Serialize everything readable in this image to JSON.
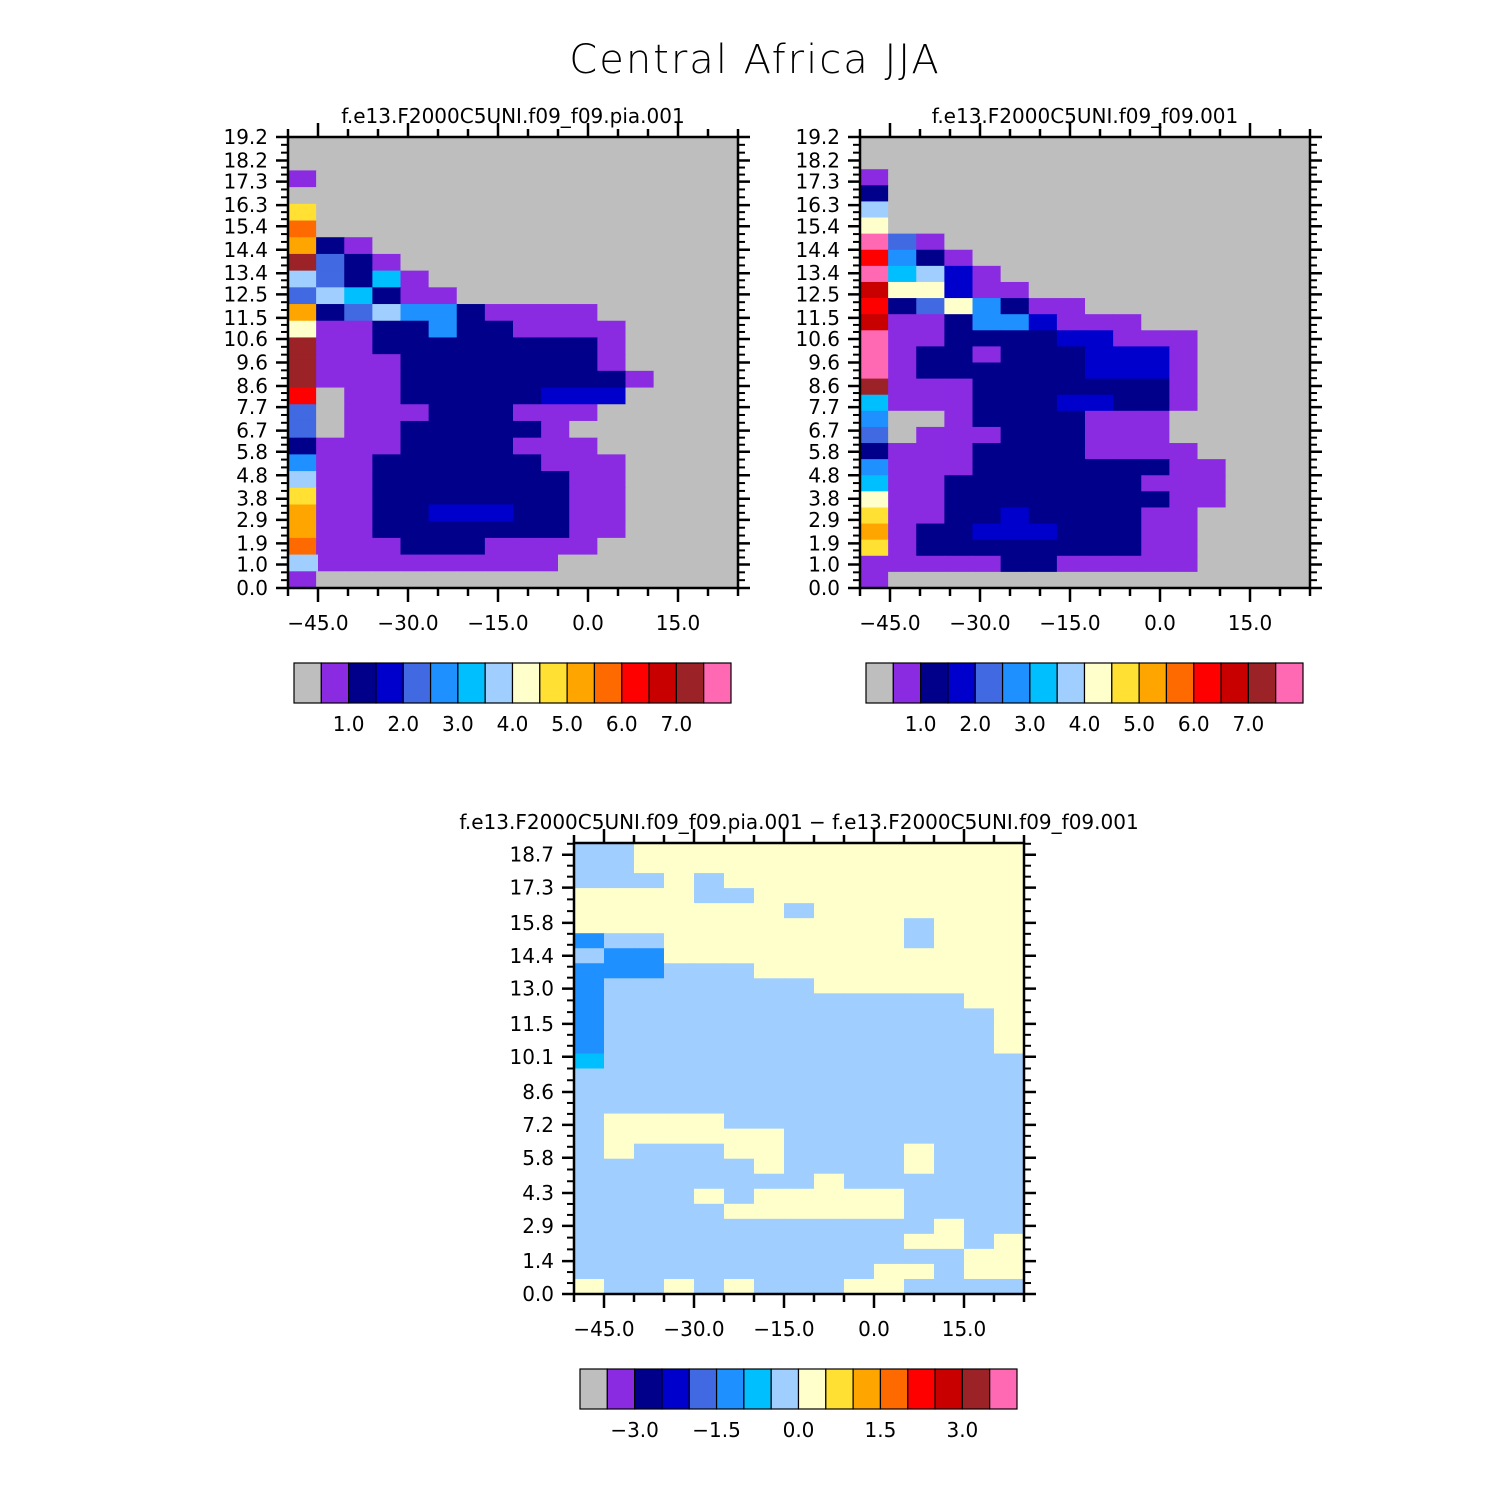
{
  "figure_title": "Central Africa JJA",
  "palettes": {
    "abs": [
      "#BEBEBE",
      "#8A2BE2",
      "#00008B",
      "#0000CD",
      "#4169E1",
      "#1E90FF",
      "#00BFFF",
      "#A0CFFF",
      "#FFFFCC",
      "#FFE033",
      "#FFA500",
      "#FF6A00",
      "#FF0000",
      "#C80000",
      "#9B2226",
      "#FF69B4"
    ],
    "diff": [
      "#BEBEBE",
      "#8A2BE2",
      "#00008B",
      "#0000CD",
      "#4169E1",
      "#1E90FF",
      "#00BFFF",
      "#A0CFFF",
      "#FFFFCC",
      "#FFE033",
      "#FFA500",
      "#FF6A00",
      "#FF0000",
      "#C80000",
      "#9B2226",
      "#FF69B4"
    ]
  },
  "chart_data": [
    {
      "type": "heatmap",
      "title": "f.e13.F2000C5UNI.f09_f09.pia.001",
      "x_ticks": [
        "−45.0",
        "−30.0",
        "−15.0",
        "0.0",
        "15.0"
      ],
      "y_ticks": [
        "0.0",
        "1.0",
        "1.9",
        "2.9",
        "3.8",
        "4.8",
        "5.8",
        "6.7",
        "7.7",
        "8.6",
        "9.6",
        "10.6",
        "11.5",
        "12.5",
        "13.4",
        "14.4",
        "15.4",
        "16.3",
        "17.3",
        "18.2",
        "19.2"
      ],
      "xlim": [
        -50,
        25
      ],
      "ylim": [
        0,
        19.2
      ],
      "colorbar_labels": [
        "1.0",
        "2.0",
        "3.0",
        "4.0",
        "5.0",
        "6.0",
        "7.0"
      ],
      "cell_grid": [
        "gggggggggggggggg",
        "gggggggggggggggg",
        "Pggggggggggggggg",
        "bggggggggggggggg",
        "Yggggggggggggggg",
        "ZggggggggggggggG",
        "OBPggggggggggggg",
        "NRBPgggggggggggg",
        "LRBDPggggggggggg",
        "RLDBPPgggggggggg",
        "OBRLSSBPPPPggggg",
        "WPPBBSBBPPPPgggg",
        "NPPBBBBBBBBPgggg",
        "NPPPBBBBBBBPgggg",
        "NPPPBBBBBBBBPggg",
        "FgPPBBBBBCCCgggg",
        "RgPPPBBBPPPggggg",
        "RgPPBBBBBPgggggg",
        "BPPPBBBBPPPggggg",
        "SPPBBBBBBPPPgggg",
        "LPPBBBBBBBPPgggg",
        "YPPBBBBBBBPPgggg",
        "OPPBBCCCBBPPgggg",
        "OPPBBBBBBBPPgggg",
        "ZPPPBBBPPPPggggg",
        "LPPPPPPPPgggggg",
        "Pggggggggggggggg"
      ],
      "cell_legend": {
        "g": 0,
        "P": 1,
        "B": 2,
        "C": 3,
        "R": 4,
        "S": 5,
        "D": 6,
        "L": 7,
        "W": 8,
        "Y": 9,
        "O": 10,
        "Z": 11,
        "F": 12,
        "M": 13,
        "N": 14,
        "K": 15
      }
    },
    {
      "type": "heatmap",
      "title": "f.e13.F2000C5UNI.f09_f09.001",
      "x_ticks": [
        "−45.0",
        "−30.0",
        "−15.0",
        "0.0",
        "15.0"
      ],
      "y_ticks": [
        "0.0",
        "1.0",
        "1.9",
        "2.9",
        "3.8",
        "4.8",
        "5.8",
        "6.7",
        "7.7",
        "8.6",
        "9.6",
        "10.6",
        "11.5",
        "12.5",
        "13.4",
        "14.4",
        "15.4",
        "16.3",
        "17.3",
        "18.2",
        "19.2"
      ],
      "xlim": [
        -50,
        25
      ],
      "ylim": [
        0,
        19.2
      ],
      "colorbar_labels": [
        "1.0",
        "2.0",
        "3.0",
        "4.0",
        "5.0",
        "6.0",
        "7.0"
      ],
      "cell_grid": [
        "gggggggggggggggg",
        "gggggggggggggggg",
        "Pggggggggggggggg",
        "Bggggggggggggggg",
        "Lggggggggggggggg",
        "Wggggggggggggggg",
        "KRPggggggggggggg",
        "FSBPgggggggggggg",
        "KDLCPggggggggggg",
        "MWWCPPgggggggggg",
        "FBRWSBPPgggggggg",
        "MPPBSSCPPPgggggg",
        "KPPBBBBCCPPPgggg",
        "KPBBPBBBCCCPgggg",
        "KPBBBBBBCCCPgggg",
        "NPPPBBBBBBBPgggg",
        "DPPPBBBCCBBPgggg",
        "SggPBBBBPPPggggg",
        "RgPPPBBBPPPggggg",
        "BPPPBBBBPPPPgggg",
        "SPPPBBBBBBBPPggg",
        "DPPBBBBBBBPPPggg",
        "WPPBBBBBBBBPPggg",
        "YPPBBCBBBBPPgggg",
        "OPBBCCCBBBPPgggg",
        "YPBBBBBBBBPPgggg",
        "PPPPPBBPPPPPgggg",
        "Pggggggggggggggg"
      ],
      "cell_legend": {
        "g": 0,
        "P": 1,
        "B": 2,
        "C": 3,
        "R": 4,
        "S": 5,
        "D": 6,
        "L": 7,
        "W": 8,
        "Y": 9,
        "O": 10,
        "Z": 11,
        "F": 12,
        "M": 13,
        "N": 14,
        "K": 15
      }
    },
    {
      "type": "heatmap",
      "title": "f.e13.F2000C5UNI.f09_f09.pia.001 − f.e13.F2000C5UNI.f09_f09.001",
      "x_ticks": [
        "−45.0",
        "−30.0",
        "−15.0",
        "0.0",
        "15.0"
      ],
      "y_ticks": [
        "0.0",
        "1.4",
        "2.9",
        "4.3",
        "5.8",
        "7.2",
        "8.6",
        "10.1",
        "11.5",
        "13.0",
        "14.4",
        "15.8",
        "17.3",
        "18.7"
      ],
      "xlim": [
        -50,
        25
      ],
      "ylim": [
        0,
        19.2
      ],
      "colorbar_labels": [
        "−3.0",
        "−1.5",
        "0.0",
        "1.5",
        "3.0"
      ],
      "cell_grid": [
        "LLWWWWWWWWWWWWW",
        "LLWWWWWWWWWWWWW",
        "LLLWLWWWWWWWWWW",
        "WWWWLLWWWWWWWWW",
        "WWWWWWWLWWWWWWW",
        "WWWWWWWWWWWLWWW",
        "SLLWWWWWWWWLWWW",
        "LSSWWWWWWWWWWWW",
        "SSSLLLWWWWWWWWW",
        "SLLLLLLLWWWWWWW",
        "SLLLLLLLLLLLLWW",
        "SLLLLLLLLLLLLLW",
        "SLLLLLLLLLLLLLW",
        "SLLLLLLLLLLLLLW",
        "DLLLLLLLLLLLLLL",
        "LLLLLLLLLLLLLLL",
        "LLLLLLLLLLLLLLL",
        "LLLLLLLLLLLLLLL",
        "LWWWWLLLLLLLLLL",
        "LWWWWWWLLLLLLLL",
        "LWLLLWWLLLLWLLL",
        "LLLLLLWLLLLWLLL",
        "LLLLLLLLWLLLLLL",
        "LLLLWLWWWWWLLLL",
        "LLLLLWWWWWWLLLL",
        "LLLLLLLLLLLLWLL",
        "LLLLLLLLLLLWWLW",
        "LLLLLLLLLLLLLWW",
        "LLLLLLLLLLWWLWW",
        "WLLWLWLLLWWLLLL"
      ],
      "cell_legend": {
        "g": 0,
        "P": 1,
        "B": 2,
        "C": 3,
        "R": 4,
        "S": 5,
        "D": 6,
        "L": 7,
        "W": 8,
        "Y": 9,
        "O": 10,
        "Z": 11,
        "F": 12,
        "M": 13,
        "N": 14,
        "K": 15
      }
    }
  ]
}
